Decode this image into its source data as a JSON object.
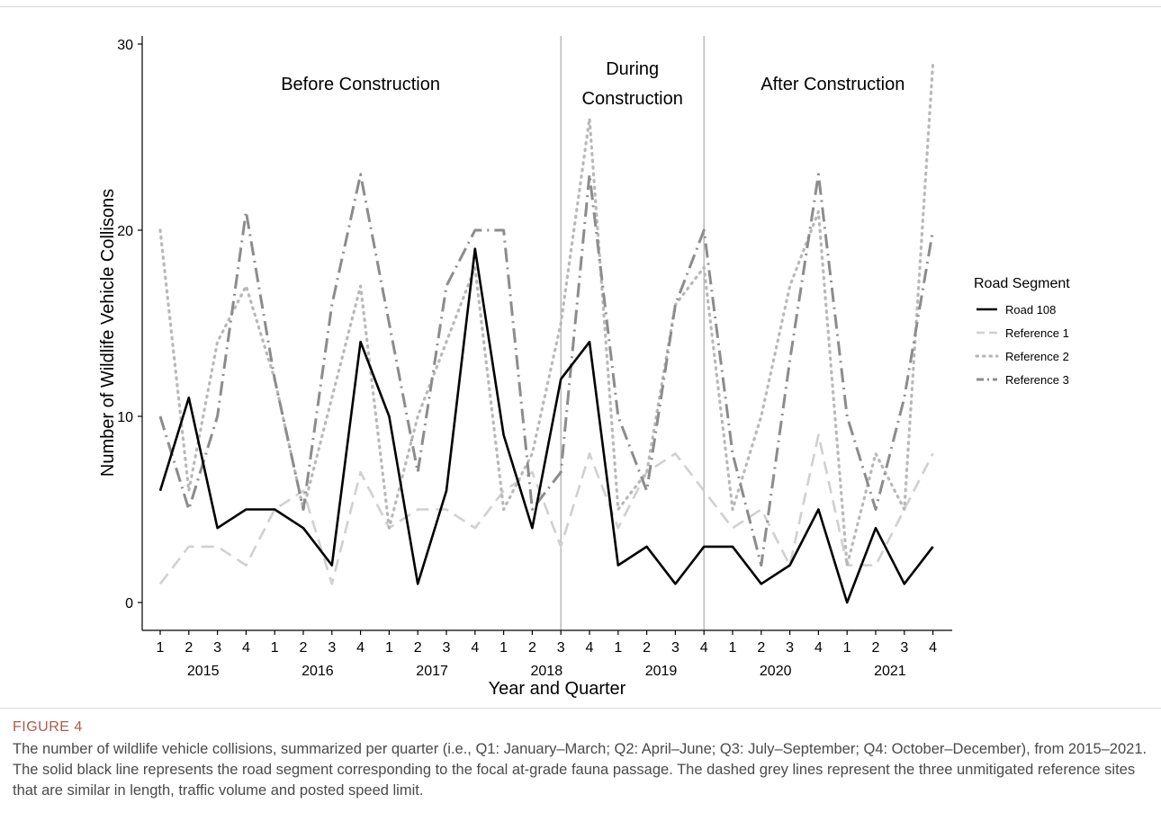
{
  "figure": {
    "label": "FIGURE 4",
    "caption": "The number of wildlife vehicle collisions, summarized per quarter (i.e., Q1: January–March; Q2: April–June; Q3: July–September; Q4: October–December), from 2015–2021. The solid black line represents the road segment corresponding to the focal at-grade fauna passage. The dashed grey lines represent the three unmitigated reference sites that are similar in length, traffic volume and posted speed limit."
  },
  "chart_data": {
    "type": "line",
    "xlabel": "Year and Quarter",
    "ylabel": "Number of Wildlife Vehicle Collisons",
    "ylim": [
      0,
      30
    ],
    "yticks": [
      0,
      10,
      20,
      30
    ],
    "grid": false,
    "legend": {
      "title": "Road Segment",
      "position": "right"
    },
    "x_quarter_labels": [
      "1",
      "2",
      "3",
      "4",
      "1",
      "2",
      "3",
      "4",
      "1",
      "2",
      "3",
      "4",
      "1",
      "2",
      "3",
      "4",
      "1",
      "2",
      "3",
      "4",
      "1",
      "2",
      "3",
      "4",
      "1",
      "2",
      "3",
      "4"
    ],
    "year_labels": [
      {
        "label": "2015",
        "center_index": 1.5
      },
      {
        "label": "2016",
        "center_index": 5.5
      },
      {
        "label": "2017",
        "center_index": 9.5
      },
      {
        "label": "2018",
        "center_index": 13.5
      },
      {
        "label": "2019",
        "center_index": 17.5
      },
      {
        "label": "2020",
        "center_index": 21.5
      },
      {
        "label": "2021",
        "center_index": 25.5
      }
    ],
    "phases": [
      {
        "label": [
          "Before Construction"
        ],
        "center_index": 7
      },
      {
        "label": [
          "During",
          "Construction"
        ],
        "center_index": 16.5
      },
      {
        "label": [
          "After Construction"
        ],
        "center_index": 23.5
      }
    ],
    "vlines_at_index": [
      14,
      19
    ],
    "series": [
      {
        "name": "Road 108",
        "color": "#000000",
        "dash": "solid",
        "values": [
          6,
          11,
          4,
          5,
          5,
          4,
          2,
          14,
          10,
          1,
          6,
          19,
          9,
          4,
          12,
          14,
          2,
          3,
          1,
          3,
          3,
          1,
          2,
          5,
          0,
          4,
          1,
          3
        ]
      },
      {
        "name": "Reference 1",
        "color": "#d0d0d0",
        "dash": "dashed",
        "values": [
          1,
          3,
          3,
          2,
          5,
          6,
          1,
          7,
          4,
          5,
          5,
          4,
          6,
          7,
          3,
          8,
          4,
          7,
          8,
          6,
          4,
          5,
          2,
          9,
          2,
          2,
          5,
          8
        ]
      },
      {
        "name": "Reference 2",
        "color": "#b8b8b8",
        "dash": "dotted",
        "values": [
          20,
          6,
          14,
          17,
          12,
          5,
          11,
          17,
          4,
          10,
          14,
          18,
          5,
          8,
          15,
          26,
          5,
          7,
          16,
          18,
          5,
          10,
          17,
          21,
          2,
          8,
          5,
          29
        ]
      },
      {
        "name": "Reference 3",
        "color": "#8c8c8c",
        "dash": "dotdash",
        "values": [
          10,
          5,
          10,
          21,
          12,
          5,
          16,
          23,
          15,
          7,
          17,
          20,
          20,
          5,
          7,
          23,
          10,
          6,
          16,
          20,
          8,
          2,
          13,
          23,
          10,
          5,
          11,
          20
        ]
      }
    ]
  }
}
